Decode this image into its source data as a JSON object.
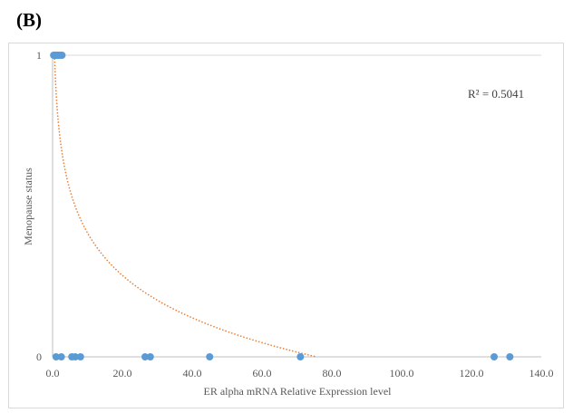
{
  "panel_label": "(B)",
  "chart_data": {
    "type": "scatter",
    "title": "",
    "xlabel": "ER alpha mRNA Relative Expression level",
    "ylabel": "Menopause  status",
    "xlim": [
      0,
      140
    ],
    "ylim": [
      0,
      1
    ],
    "x_ticks": [
      "0.0",
      "20.0",
      "40.0",
      "60.0",
      "80.0",
      "100.0",
      "120.0",
      "140.0"
    ],
    "y_ticks": [
      "0",
      "1"
    ],
    "grid": "horizontal",
    "marker_color": "#5b9bd5",
    "trendline_color": "#ed7d31",
    "series": [
      {
        "x": [
          0.3,
          0.6,
          0.9,
          1.2,
          1.5,
          1.8,
          2.1,
          2.4,
          2.7
        ],
        "y": [
          1,
          1,
          1,
          1,
          1,
          1,
          1,
          1,
          1
        ]
      },
      {
        "x": [
          1.0,
          2.5,
          5.5,
          6.5,
          8.0,
          26.5,
          28.0,
          45.0,
          71.0,
          126.5,
          131.0
        ],
        "y": [
          0,
          0,
          0,
          0,
          0,
          0,
          0,
          0,
          0,
          0,
          0
        ]
      }
    ],
    "trendline": {
      "type": "logarithmic",
      "a": 0.8786,
      "b": -0.2031,
      "x_start": 0.55,
      "x_end": 75.5
    },
    "annotation": "R² = 0.5041"
  }
}
